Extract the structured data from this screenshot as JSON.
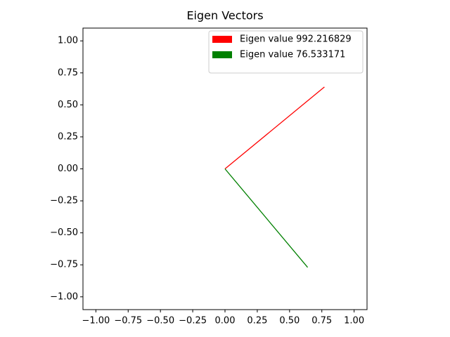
{
  "chart_data": {
    "type": "line",
    "title": "Eigen Vectors",
    "series": [
      {
        "name": "Eigen value 992.216829",
        "color": "#ff0000",
        "x": [
          0,
          0.77
        ],
        "values": [
          0,
          0.64
        ]
      },
      {
        "name": "Eigen value 76.533171",
        "color": "#008000",
        "x": [
          0,
          0.64
        ],
        "values": [
          0,
          -0.77
        ]
      }
    ],
    "xlim": [
      -1.1,
      1.1
    ],
    "ylim": [
      -1.1,
      1.1
    ],
    "xticks": [
      {
        "value": -1,
        "label": "−1.00"
      },
      {
        "value": -0.75,
        "label": "−0.75"
      },
      {
        "value": -0.5,
        "label": "−0.50"
      },
      {
        "value": -0.25,
        "label": "−0.25"
      },
      {
        "value": 0,
        "label": "0.00"
      },
      {
        "value": 0.25,
        "label": "0.25"
      },
      {
        "value": 0.5,
        "label": "0.50"
      },
      {
        "value": 0.75,
        "label": "0.75"
      },
      {
        "value": 1,
        "label": "1.00"
      }
    ],
    "yticks": [
      {
        "value": -1,
        "label": "−1.00"
      },
      {
        "value": -0.75,
        "label": "−0.75"
      },
      {
        "value": -0.5,
        "label": "−0.50"
      },
      {
        "value": -0.25,
        "label": "−0.25"
      },
      {
        "value": 0,
        "label": "0.00"
      },
      {
        "value": 0.25,
        "label": "0.25"
      },
      {
        "value": 0.5,
        "label": "0.50"
      },
      {
        "value": 0.75,
        "label": "0.75"
      },
      {
        "value": 1,
        "label": "1.00"
      }
    ],
    "legend": "upper right",
    "grid": false
  }
}
